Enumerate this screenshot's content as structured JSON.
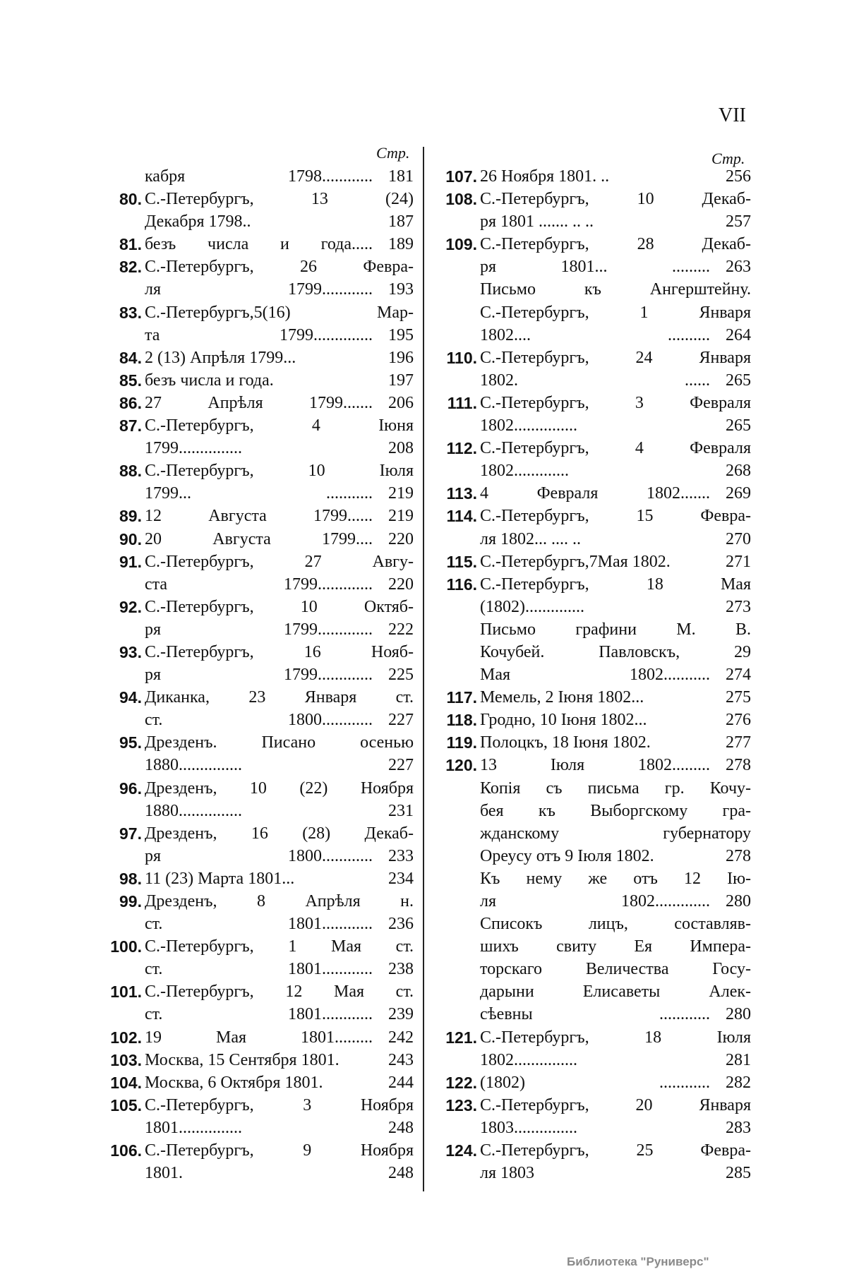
{
  "page_number": "VII",
  "page_header": "Стр.",
  "columns": [
    {
      "rows": [
        {
          "num": "",
          "text": "кабря 1798............",
          "page": "181"
        },
        {
          "num": "80.",
          "text": "С.-Петербургъ, 13 (24)",
          "page": ""
        },
        {
          "num": "",
          "text": "Декабря 1798..",
          "page": "187"
        },
        {
          "num": "81.",
          "text": "безъ числа и года.....",
          "page": "189"
        },
        {
          "num": "82.",
          "text": "С.-Петербургъ, 26 Февра-",
          "page": ""
        },
        {
          "num": "",
          "text": "ля 1799............",
          "page": "193"
        },
        {
          "num": "83.",
          "text": "С.-Петербургъ,5(16) Мар-",
          "page": ""
        },
        {
          "num": "",
          "text": "та 1799..............",
          "page": "195"
        },
        {
          "num": "84.",
          "text": "2 (13) Апрѣля 1799...",
          "page": "196"
        },
        {
          "num": "85.",
          "text": "безъ числа и года.",
          "page": "197"
        },
        {
          "num": "86.",
          "text": "27 Апрѣля 1799.......",
          "page": "206"
        },
        {
          "num": "87.",
          "text": "С.-Петербургъ, 4 Іюня",
          "page": ""
        },
        {
          "num": "",
          "text": "1799...............",
          "page": "208"
        },
        {
          "num": "88.",
          "text": "С.-Петербургъ, 10 Іюля",
          "page": ""
        },
        {
          "num": "",
          "text": "1799... ...........",
          "page": "219"
        },
        {
          "num": "89.",
          "text": "12 Августа 1799......",
          "page": "219"
        },
        {
          "num": "90.",
          "text": "20 Августа 1799....",
          "page": "220"
        },
        {
          "num": "91.",
          "text": "С.-Петербургъ, 27 Авгу-",
          "page": ""
        },
        {
          "num": "",
          "text": "ста 1799.............",
          "page": "220"
        },
        {
          "num": "92.",
          "text": "С.-Петербургъ, 10 Октяб-",
          "page": ""
        },
        {
          "num": "",
          "text": "ря 1799.............",
          "page": "222"
        },
        {
          "num": "93.",
          "text": "С.-Петербургъ, 16 Нояб-",
          "page": ""
        },
        {
          "num": "",
          "text": "ря 1799.............",
          "page": "225"
        },
        {
          "num": "94.",
          "text": "Диканка, 23 Января ст.",
          "page": ""
        },
        {
          "num": "",
          "text": "ст. 1800............",
          "page": "227"
        },
        {
          "num": "95.",
          "text": "Дрезденъ. Писано осенью",
          "page": ""
        },
        {
          "num": "",
          "text": "1880...............",
          "page": "227"
        },
        {
          "num": "96.",
          "text": "Дрезденъ, 10 (22) Ноября",
          "page": ""
        },
        {
          "num": "",
          "text": "1880...............",
          "page": "231"
        },
        {
          "num": "97.",
          "text": "Дрезденъ, 16 (28) Декаб-",
          "page": ""
        },
        {
          "num": "",
          "text": "ря 1800............",
          "page": "233"
        },
        {
          "num": "98.",
          "text": "11 (23) Марта 1801...",
          "page": "234"
        },
        {
          "num": "99.",
          "text": "Дрезденъ, 8 Апрѣля н.",
          "page": ""
        },
        {
          "num": "",
          "text": "ст. 1801............",
          "page": "236"
        },
        {
          "num": "100.",
          "text": "С.-Петербургъ, 1 Мая ст.",
          "page": ""
        },
        {
          "num": "",
          "text": "ст. 1801............",
          "page": "238"
        },
        {
          "num": "101.",
          "text": "С.-Петербургъ, 12 Мая ст.",
          "page": ""
        },
        {
          "num": "",
          "text": "ст. 1801............",
          "page": "239"
        },
        {
          "num": "102.",
          "text": "19 Мая 1801.........",
          "page": "242"
        },
        {
          "num": "103.",
          "text": "Москва, 15 Сентября 1801.",
          "page": "243"
        },
        {
          "num": "104.",
          "text": "Москва, 6 Октября 1801.",
          "page": "244"
        },
        {
          "num": "105.",
          "text": "С.-Петербургъ, 3 Ноября",
          "page": ""
        },
        {
          "num": "",
          "text": "1801...............",
          "page": "248"
        },
        {
          "num": "106.",
          "text": "С.-Петербургъ, 9 Ноября",
          "page": ""
        },
        {
          "num": "",
          "text": "1801.",
          "page": "248"
        }
      ]
    },
    {
      "rows": [
        {
          "num": "107.",
          "text": "26 Ноября 1801. ..",
          "page": "256"
        },
        {
          "num": "108.",
          "text": "С.-Петербургъ, 10 Декаб-",
          "page": ""
        },
        {
          "num": "",
          "text": "ря 1801 ....... .. ..",
          "page": "257"
        },
        {
          "num": "109.",
          "text": "С.-Петербургъ, 28 Декаб-",
          "page": ""
        },
        {
          "num": "",
          "text": "ря 1801... .........",
          "page": "263"
        },
        {
          "num": "",
          "text": "Письмо къ Ангерштейну.",
          "page": ""
        },
        {
          "num": "",
          "text": "С.-Петербургъ, 1 Января",
          "page": ""
        },
        {
          "num": "",
          "text": "1802.... ..........",
          "page": "264"
        },
        {
          "num": "110.",
          "text": "С.-Петербургъ, 24 Января",
          "page": ""
        },
        {
          "num": "",
          "text": "1802.      ......",
          "page": "265"
        },
        {
          "num": "111.",
          "text": "С.-Петербургъ, 3 Февраля",
          "page": ""
        },
        {
          "num": "",
          "text": "1802...............",
          "page": "265"
        },
        {
          "num": "112.",
          "text": "С.-Петербургъ, 4 Февраля",
          "page": ""
        },
        {
          "num": "",
          "text": "1802.............",
          "page": "268"
        },
        {
          "num": "113.",
          "text": "4 Февраля 1802.......",
          "page": "269"
        },
        {
          "num": "114.",
          "text": "С.-Петербургъ, 15 Февра-",
          "page": ""
        },
        {
          "num": "",
          "text": "ля 1802... .... ..",
          "page": "270"
        },
        {
          "num": "115.",
          "text": "С.-Петербургъ,7Мая 1802.",
          "page": "271"
        },
        {
          "num": "116.",
          "text": "С.-Петербургъ, 18 Мая",
          "page": ""
        },
        {
          "num": "",
          "text": "(1802)..............",
          "page": "273"
        },
        {
          "num": "",
          "text": "Письмо графини М. В.",
          "page": ""
        },
        {
          "num": "",
          "text": "Кочубей. Павловскъ, 29",
          "page": ""
        },
        {
          "num": "",
          "text": "Мая 1802...........",
          "page": "274"
        },
        {
          "num": "117.",
          "text": "Мемель, 2 Іюня 1802...",
          "page": "275"
        },
        {
          "num": "118.",
          "text": "Гродно, 10 Іюня 1802...",
          "page": "276"
        },
        {
          "num": "119.",
          "text": "Полоцкъ, 18 Іюня 1802.",
          "page": "277"
        },
        {
          "num": "120.",
          "text": "13 Іюля 1802.........",
          "page": "278"
        },
        {
          "num": "",
          "text": "Копія съ письма гр. Кочу-",
          "page": ""
        },
        {
          "num": "",
          "text": "бея къ Выборгскому гра-",
          "page": ""
        },
        {
          "num": "",
          "text": "жданскому губернатору",
          "page": ""
        },
        {
          "num": "",
          "text": "Ореусу отъ 9 Іюля 1802.",
          "page": "278"
        },
        {
          "num": "",
          "text": "Къ нему же отъ 12 Ію-",
          "page": ""
        },
        {
          "num": "",
          "text": "ля 1802.............",
          "page": "280"
        },
        {
          "num": "",
          "text": "Списокъ лицъ, составляв-",
          "page": ""
        },
        {
          "num": "",
          "text": "шихъ свиту Ея Импера-",
          "page": ""
        },
        {
          "num": "",
          "text": "торскаго Величества Госу-",
          "page": ""
        },
        {
          "num": "",
          "text": "дарыни Елисаветы Алек-",
          "page": ""
        },
        {
          "num": "",
          "text": "сѣевны ............",
          "page": "280"
        },
        {
          "num": "121.",
          "text": "С.-Петербургъ, 18 Іюля",
          "page": ""
        },
        {
          "num": "",
          "text": "1802...............",
          "page": "281"
        },
        {
          "num": "122.",
          "text": "(1802) ............",
          "page": "282"
        },
        {
          "num": "123.",
          "text": "С.-Петербургъ, 20 Января",
          "page": ""
        },
        {
          "num": "",
          "text": "1803...............",
          "page": "283"
        },
        {
          "num": "124.",
          "text": "С.-Петербургъ, 25 Февра-",
          "page": ""
        },
        {
          "num": "",
          "text": "ля 1803",
          "page": "285"
        }
      ]
    }
  ],
  "watermark": "Библиотека \"Руниверс\""
}
